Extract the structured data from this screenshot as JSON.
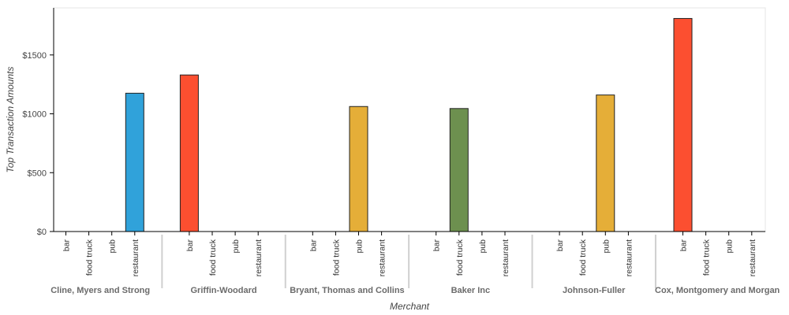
{
  "chart_data": {
    "type": "bar",
    "xlabel": "Merchant",
    "ylabel": "Top Transaction Amounts",
    "ylim": [
      0,
      1900
    ],
    "yticks": [
      0,
      500,
      1000,
      1500
    ],
    "ytick_labels": [
      "$0",
      "$500",
      "$1000",
      "$1500"
    ],
    "grid": false,
    "subcategories": [
      "bar",
      "food truck",
      "pub",
      "restaurant"
    ],
    "groups": [
      {
        "merchant": "Cline, Myers and Strong",
        "values": [
          0,
          0,
          0,
          1175
        ]
      },
      {
        "merchant": "Griffin-Woodard",
        "values": [
          1330,
          0,
          0,
          0
        ]
      },
      {
        "merchant": "Bryant, Thomas and Collins",
        "values": [
          0,
          0,
          1062,
          0
        ]
      },
      {
        "merchant": "Baker Inc",
        "values": [
          0,
          1045,
          0,
          0
        ]
      },
      {
        "merchant": "Johnson-Fuller",
        "values": [
          0,
          0,
          1160,
          0
        ]
      },
      {
        "merchant": "Cox, Montgomery and Morgan",
        "values": [
          1810,
          0,
          0,
          0
        ]
      }
    ],
    "colors": {
      "bar": "#fc4f30",
      "food truck": "#6d904f",
      "pub": "#e5ae38",
      "restaurant": "#30a2da"
    }
  }
}
